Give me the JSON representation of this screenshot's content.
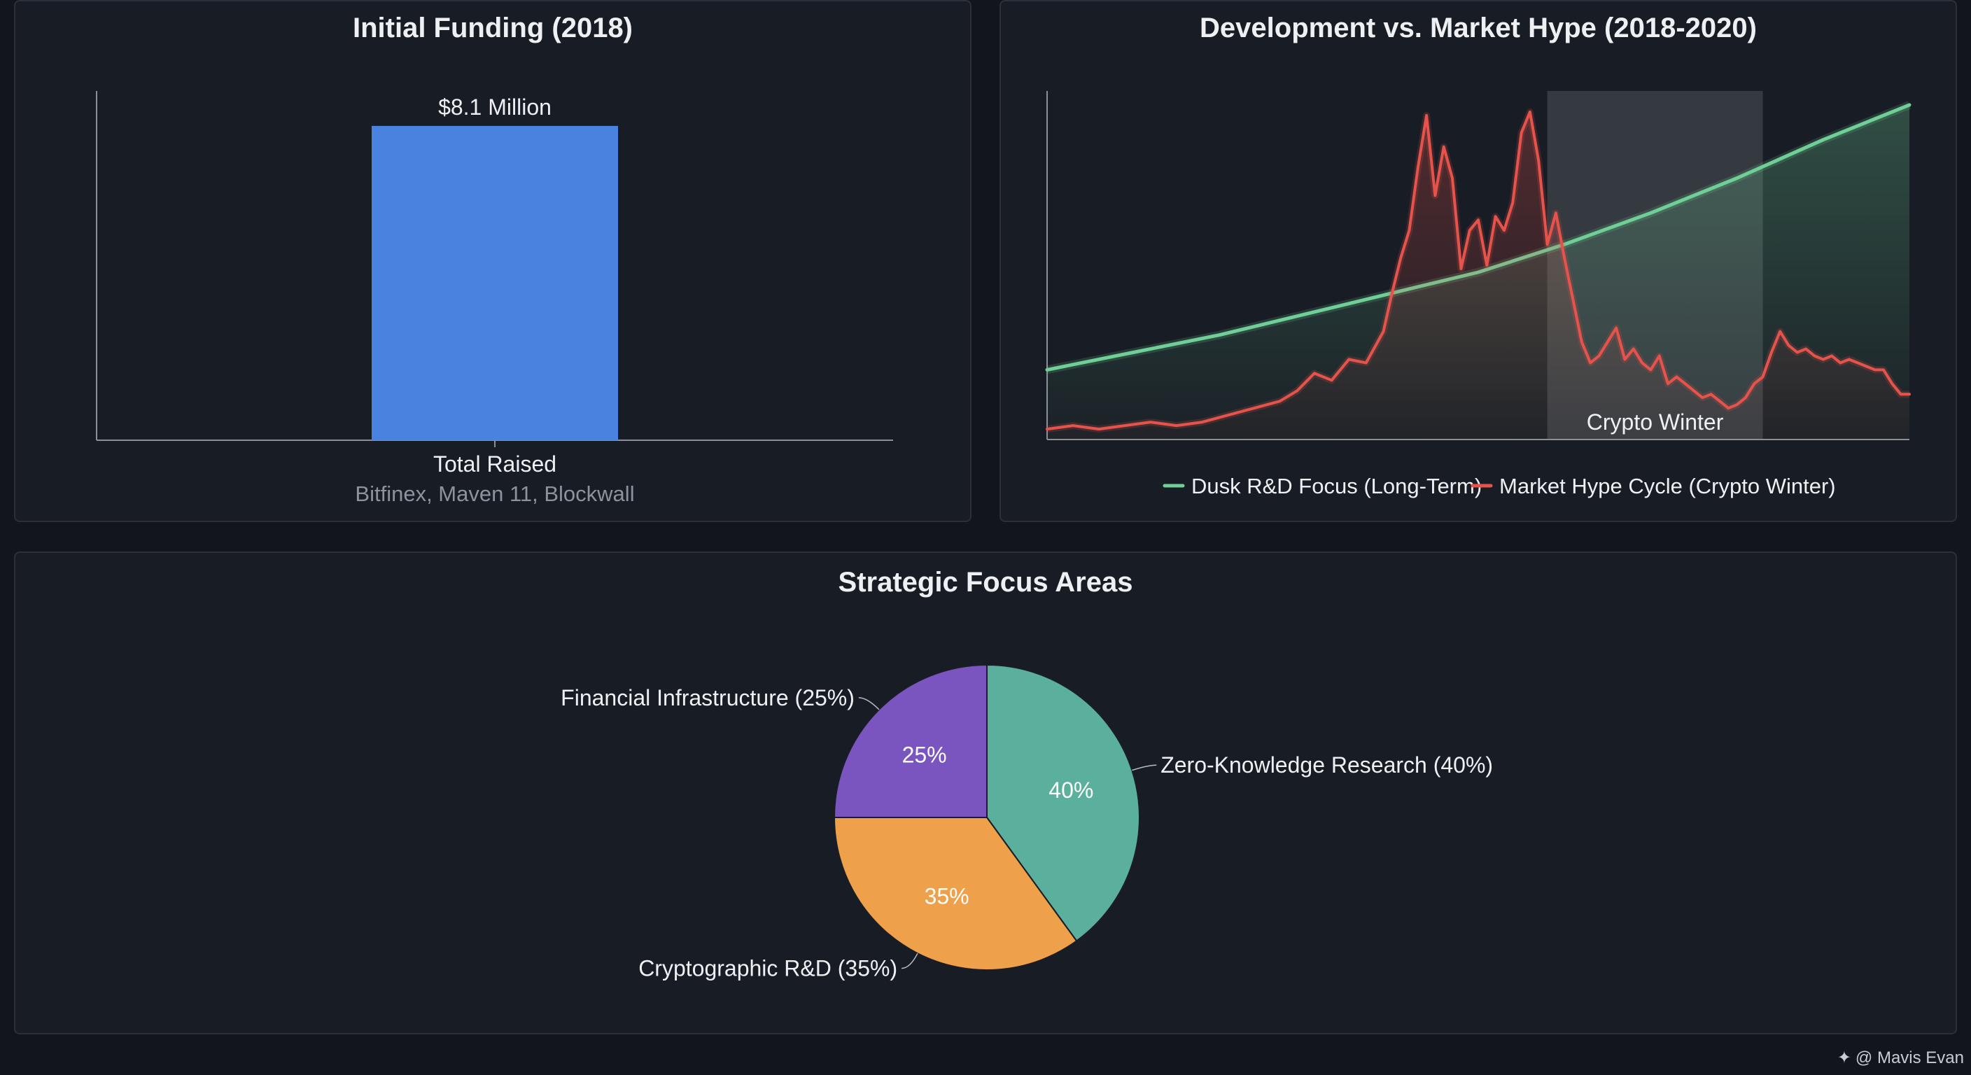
{
  "chart_data": [
    {
      "type": "bar",
      "title": "Initial Funding (2018)",
      "categories": [
        "Total Raised"
      ],
      "category_sublabel": "Bitfinex, Maven 11, Blockwall",
      "values": [
        8.1
      ],
      "data_labels": [
        "$8.1 Million"
      ],
      "ylim": [
        0,
        9
      ],
      "grid": false,
      "colors": {
        "bar": "#4a82e0"
      }
    },
    {
      "type": "line",
      "title": "Development vs. Market Hype (2018-2020)",
      "xlim": [
        0,
        100
      ],
      "ylim": [
        0,
        100
      ],
      "grid": false,
      "legend_position": "bottom",
      "annotations": [
        {
          "label": "Crypto Winter",
          "x_range": [
            58,
            83
          ]
        }
      ],
      "series": [
        {
          "name": "Dusk R&D Focus (Long-Term)",
          "color": "#6fcf97",
          "x": [
            0,
            10,
            20,
            30,
            40,
            50,
            60,
            70,
            80,
            90,
            100
          ],
          "y": [
            20,
            25,
            30,
            36,
            42,
            48,
            56,
            65,
            75,
            86,
            96
          ]
        },
        {
          "name": "Market Hype Cycle (Crypto Winter)",
          "color": "#e5534b",
          "x": [
            0,
            3,
            6,
            9,
            12,
            15,
            18,
            21,
            24,
            27,
            29,
            31,
            33,
            35,
            37,
            39,
            40,
            41,
            42,
            43,
            44,
            45,
            46,
            47,
            48,
            49,
            50,
            51,
            52,
            53,
            54,
            55,
            56,
            57,
            58,
            59,
            60,
            61,
            62,
            63,
            64,
            65,
            66,
            67,
            68,
            69,
            70,
            71,
            72,
            73,
            74,
            75,
            76,
            77,
            78,
            79,
            80,
            81,
            82,
            83,
            84,
            85,
            86,
            87,
            88,
            89,
            90,
            91,
            92,
            93,
            94,
            95,
            96,
            97,
            98,
            99,
            100
          ],
          "y": [
            3,
            4,
            3,
            4,
            5,
            4,
            5,
            7,
            9,
            11,
            14,
            19,
            17,
            23,
            22,
            31,
            42,
            52,
            60,
            78,
            93,
            70,
            84,
            75,
            49,
            60,
            63,
            50,
            64,
            60,
            68,
            88,
            94,
            80,
            56,
            65,
            52,
            40,
            28,
            22,
            24,
            28,
            32,
            23,
            26,
            22,
            20,
            24,
            16,
            18,
            16,
            14,
            12,
            13,
            11,
            9,
            10,
            12,
            16,
            18,
            25,
            31,
            27,
            25,
            26,
            24,
            23,
            24,
            22,
            23,
            22,
            21,
            20,
            20,
            16,
            13,
            13
          ]
        }
      ]
    },
    {
      "type": "pie",
      "title": "Strategic Focus Areas",
      "slices": [
        {
          "name": "Zero-Knowledge Research (40%)",
          "value": 40,
          "label": "40%",
          "color": "#5bb09d"
        },
        {
          "name": "Cryptographic R&D (35%)",
          "value": 35,
          "label": "35%",
          "color": "#eea04a"
        },
        {
          "name": "Financial Infrastructure (25%)",
          "value": 25,
          "label": "25%",
          "color": "#7a55c0"
        }
      ]
    }
  ],
  "watermark": {
    "icon": "sparkle-icon",
    "text": "@ Mavis Evan"
  },
  "colors": {
    "background": "#12151c",
    "panel": "#181c24",
    "panel_border": "#2a2f39",
    "axis": "#8a8f98"
  }
}
